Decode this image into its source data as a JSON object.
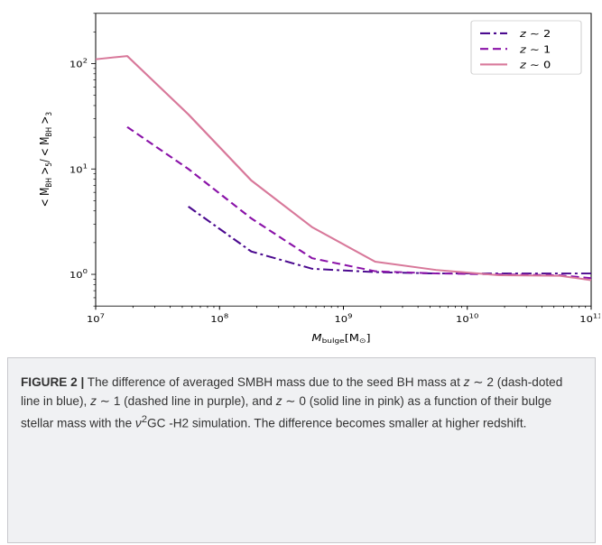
{
  "chart_data": {
    "type": "line",
    "xscale": "log",
    "yscale": "log",
    "xlim": [
      10000000,
      100000000000
    ],
    "ylim": [
      0.5,
      300
    ],
    "xlabel": "M_bulge[M_⊙]",
    "ylabel": "<M_BH>_5/<M_BH>_3",
    "x_ticks": [
      {
        "value": 10000000,
        "base": "10",
        "exp": "7"
      },
      {
        "value": 100000000,
        "base": "10",
        "exp": "8"
      },
      {
        "value": 1000000000,
        "base": "10",
        "exp": "9"
      },
      {
        "value": 10000000000,
        "base": "10",
        "exp": "10"
      },
      {
        "value": 100000000000,
        "base": "10",
        "exp": "11"
      }
    ],
    "y_ticks": [
      {
        "value": 1,
        "base": "10",
        "exp": "0"
      },
      {
        "value": 10,
        "base": "10",
        "exp": "1"
      },
      {
        "value": 100,
        "base": "10",
        "exp": "2"
      }
    ],
    "legend_position": "top-right",
    "series": [
      {
        "name": "z ∼ 2",
        "color": "#4b0a8f",
        "style": "dashdot",
        "x": [
          56000000,
          180000000,
          560000000,
          1800000000,
          5600000000,
          18000000000,
          56000000000,
          100000000000
        ],
        "y": [
          4.4,
          1.65,
          1.13,
          1.05,
          1.02,
          1.02,
          1.02,
          1.02
        ]
      },
      {
        "name": "z ∼ 1",
        "color": "#8a12a8",
        "style": "dashed",
        "x": [
          18000000,
          56000000,
          180000000,
          560000000,
          1800000000,
          5600000000,
          18000000000,
          56000000000,
          100000000000
        ],
        "y": [
          25,
          10,
          3.4,
          1.42,
          1.07,
          1.02,
          1.0,
          0.98,
          0.92
        ]
      },
      {
        "name": "z ∼ 0",
        "color": "#d8789a",
        "style": "solid",
        "x": [
          10000000,
          18000000,
          56000000,
          180000000,
          560000000,
          1800000000,
          5600000000,
          18000000000,
          56000000000,
          100000000000
        ],
        "y": [
          110,
          118,
          33,
          7.8,
          2.8,
          1.32,
          1.1,
          0.98,
          0.97,
          0.88
        ]
      }
    ]
  },
  "legend": [
    {
      "var": "z",
      "rest": " ∼ 2"
    },
    {
      "var": "z",
      "rest": " ∼ 1"
    },
    {
      "var": "z",
      "rest": " ∼ 0"
    }
  ],
  "axes": {
    "xlabel_main": "M",
    "xlabel_sub": "bulge",
    "xlabel_rest": "[M",
    "xlabel_sub2": "⊙",
    "xlabel_end": "]",
    "ylabel_p1": "< M",
    "ylabel_sub1": "BH",
    "ylabel_p2": " >",
    "ylabel_sub2": "5",
    "ylabel_p3": "/ < M",
    "ylabel_sub3": "BH",
    "ylabel_p4": " >",
    "ylabel_sub4": "3"
  },
  "caption": {
    "label": "FIGURE 2 |",
    "t1": " The difference of averaged SMBH mass due to the seed BH mass at ",
    "z1": "z",
    "t2": " ∼ 2 (dash-doted line in blue), ",
    "z2": "z",
    "t3": " ∼ 1 (dashed line in purple), and ",
    "z3": "z",
    "t4": " ∼ 0 (solid line in pink) as a function of their bulge stellar mass with the ",
    "nu": "ν",
    "sup": "2",
    "t5": "GC  -H2 simulation. The difference becomes smaller at higher redshift."
  }
}
